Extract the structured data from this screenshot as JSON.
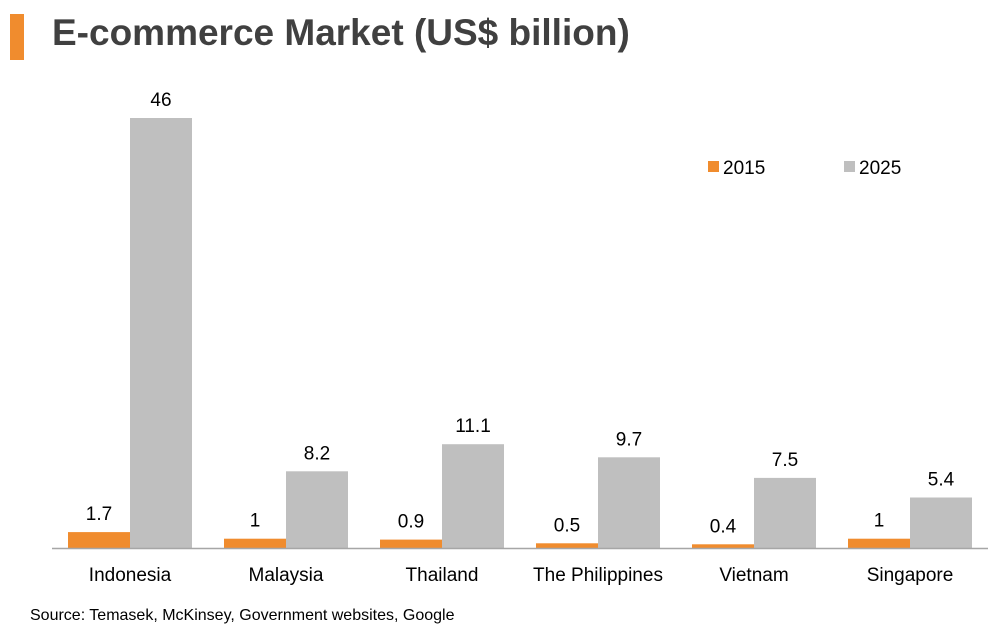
{
  "colors": {
    "accent": "#f08c2e",
    "series_2015": "#f08c2e",
    "series_2025": "#bfbfbf",
    "title_text": "#404040",
    "axis": "#a6a6a6"
  },
  "chart_data": {
    "type": "bar",
    "title": "E-commerce Market (US$ billion)",
    "xlabel": "",
    "ylabel": "",
    "categories": [
      "Indonesia",
      "Malaysia",
      "Thailand",
      "The Philippines",
      "Vietnam",
      "Singapore"
    ],
    "series": [
      {
        "name": "2015",
        "values": [
          1.7,
          1,
          0.9,
          0.5,
          0.4,
          1
        ]
      },
      {
        "name": "2025",
        "values": [
          46,
          8.2,
          11.1,
          9.7,
          7.5,
          5.4
        ]
      }
    ],
    "data_labels": [
      [
        "1.7",
        "1",
        "0.9",
        "0.5",
        "0.4",
        "1"
      ],
      [
        "46",
        "8.2",
        "11.1",
        "9.7",
        "7.5",
        "5.4"
      ]
    ],
    "ylim": [
      0,
      46
    ],
    "grid": false,
    "legend_position": "top-right"
  },
  "source": "Source: Temasek, McKinsey, Government websites, Google"
}
